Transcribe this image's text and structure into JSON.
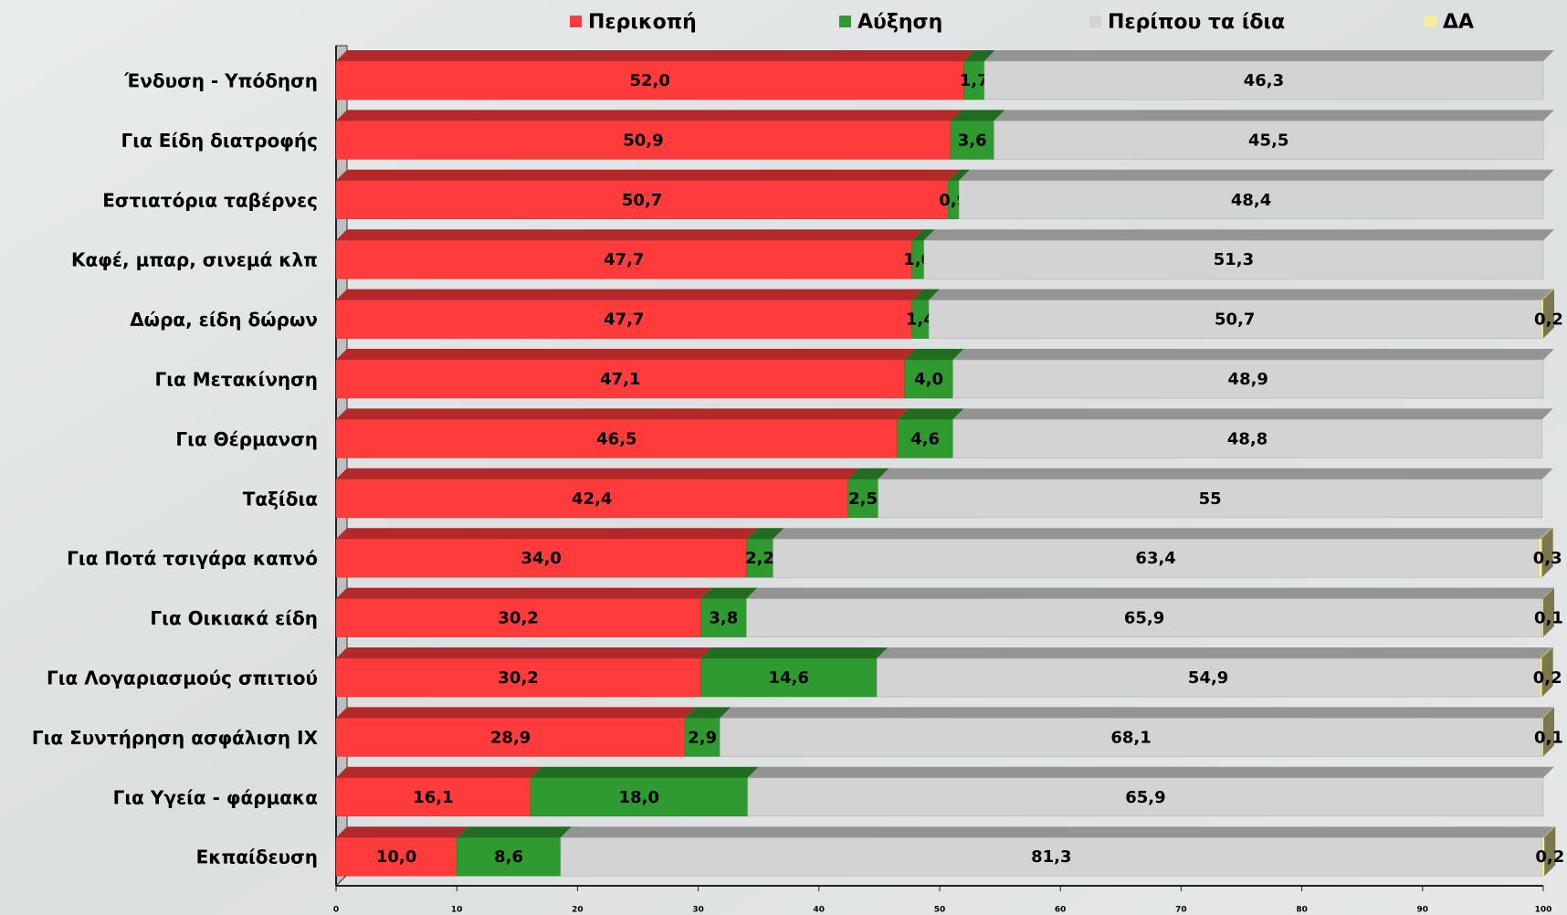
{
  "chart_data": {
    "type": "stacked-bar-horizontal",
    "categories": [
      "Ένδυση - Υπόδηση",
      "Για Είδη διατροφής",
      "Εστιατόρια ταβέρνες",
      "Καφέ, μπαρ, σινεμά κλπ",
      "Δώρα, είδη δώρων",
      "Για Μετακίνηση",
      "Για Θέρμανση",
      "Ταξίδια",
      "Για Ποτά  τσιγάρα καπνό",
      "Για Οικιακά είδη",
      "Για Λογαριασμούς σπιτιού",
      "Για Συντήρηση  ασφάλιση ΙΧ",
      "Για Υγεία - φάρμακα",
      "Εκπαίδευση"
    ],
    "series": [
      {
        "name": "Περικοπή",
        "color": "#ff3b3b",
        "values": [
          52.0,
          50.9,
          50.7,
          47.7,
          47.7,
          47.1,
          46.5,
          42.4,
          34.0,
          30.2,
          30.2,
          28.9,
          16.1,
          10.0
        ],
        "value_labels": [
          "52,0",
          "50,9",
          "50,7",
          "47,7",
          "47,7",
          "47,1",
          "46,5",
          "42,4",
          "34,0",
          "30,2",
          "30,2",
          "28,9",
          "16,1",
          "10,0"
        ]
      },
      {
        "name": "Αύξηση",
        "color": "#2f9a2f",
        "values": [
          1.7,
          3.6,
          0.9,
          1.0,
          1.4,
          4.0,
          4.6,
          2.5,
          2.2,
          3.8,
          14.6,
          2.9,
          18.0,
          8.6
        ],
        "value_labels": [
          "1,7",
          "3,6",
          "0,9",
          "1,0",
          "1,4",
          "4,0",
          "4,6",
          "2,5",
          "2,2",
          "3,8",
          "14,6",
          "2,9",
          "18,0",
          "8,6"
        ]
      },
      {
        "name": "Περίπου τα ίδια",
        "color": "#d3d3d3",
        "values": [
          46.3,
          45.5,
          48.4,
          51.3,
          50.7,
          48.9,
          48.8,
          55,
          63.4,
          65.9,
          54.9,
          68.1,
          65.9,
          81.3
        ],
        "value_labels": [
          "46,3",
          "45,5",
          "48,4",
          "51,3",
          "50,7",
          "48,9",
          "48,8",
          "55",
          "63,4",
          "65,9",
          "54,9",
          "68,1",
          "65,9",
          "81,3"
        ]
      },
      {
        "name": "ΔΑ",
        "color": "#f3ee9c",
        "values": [
          null,
          null,
          null,
          null,
          0.2,
          null,
          null,
          null,
          0.3,
          0.1,
          0.2,
          0.1,
          null,
          0.2
        ],
        "value_labels": [
          null,
          null,
          null,
          null,
          "0,2",
          null,
          null,
          null,
          "0,3",
          "0,1",
          "0,2",
          "0,1",
          null,
          "0,2"
        ]
      }
    ],
    "xlim": [
      0,
      100
    ],
    "xticks": [
      0,
      10,
      20,
      30,
      40,
      50,
      60,
      70,
      80,
      90,
      100
    ]
  }
}
